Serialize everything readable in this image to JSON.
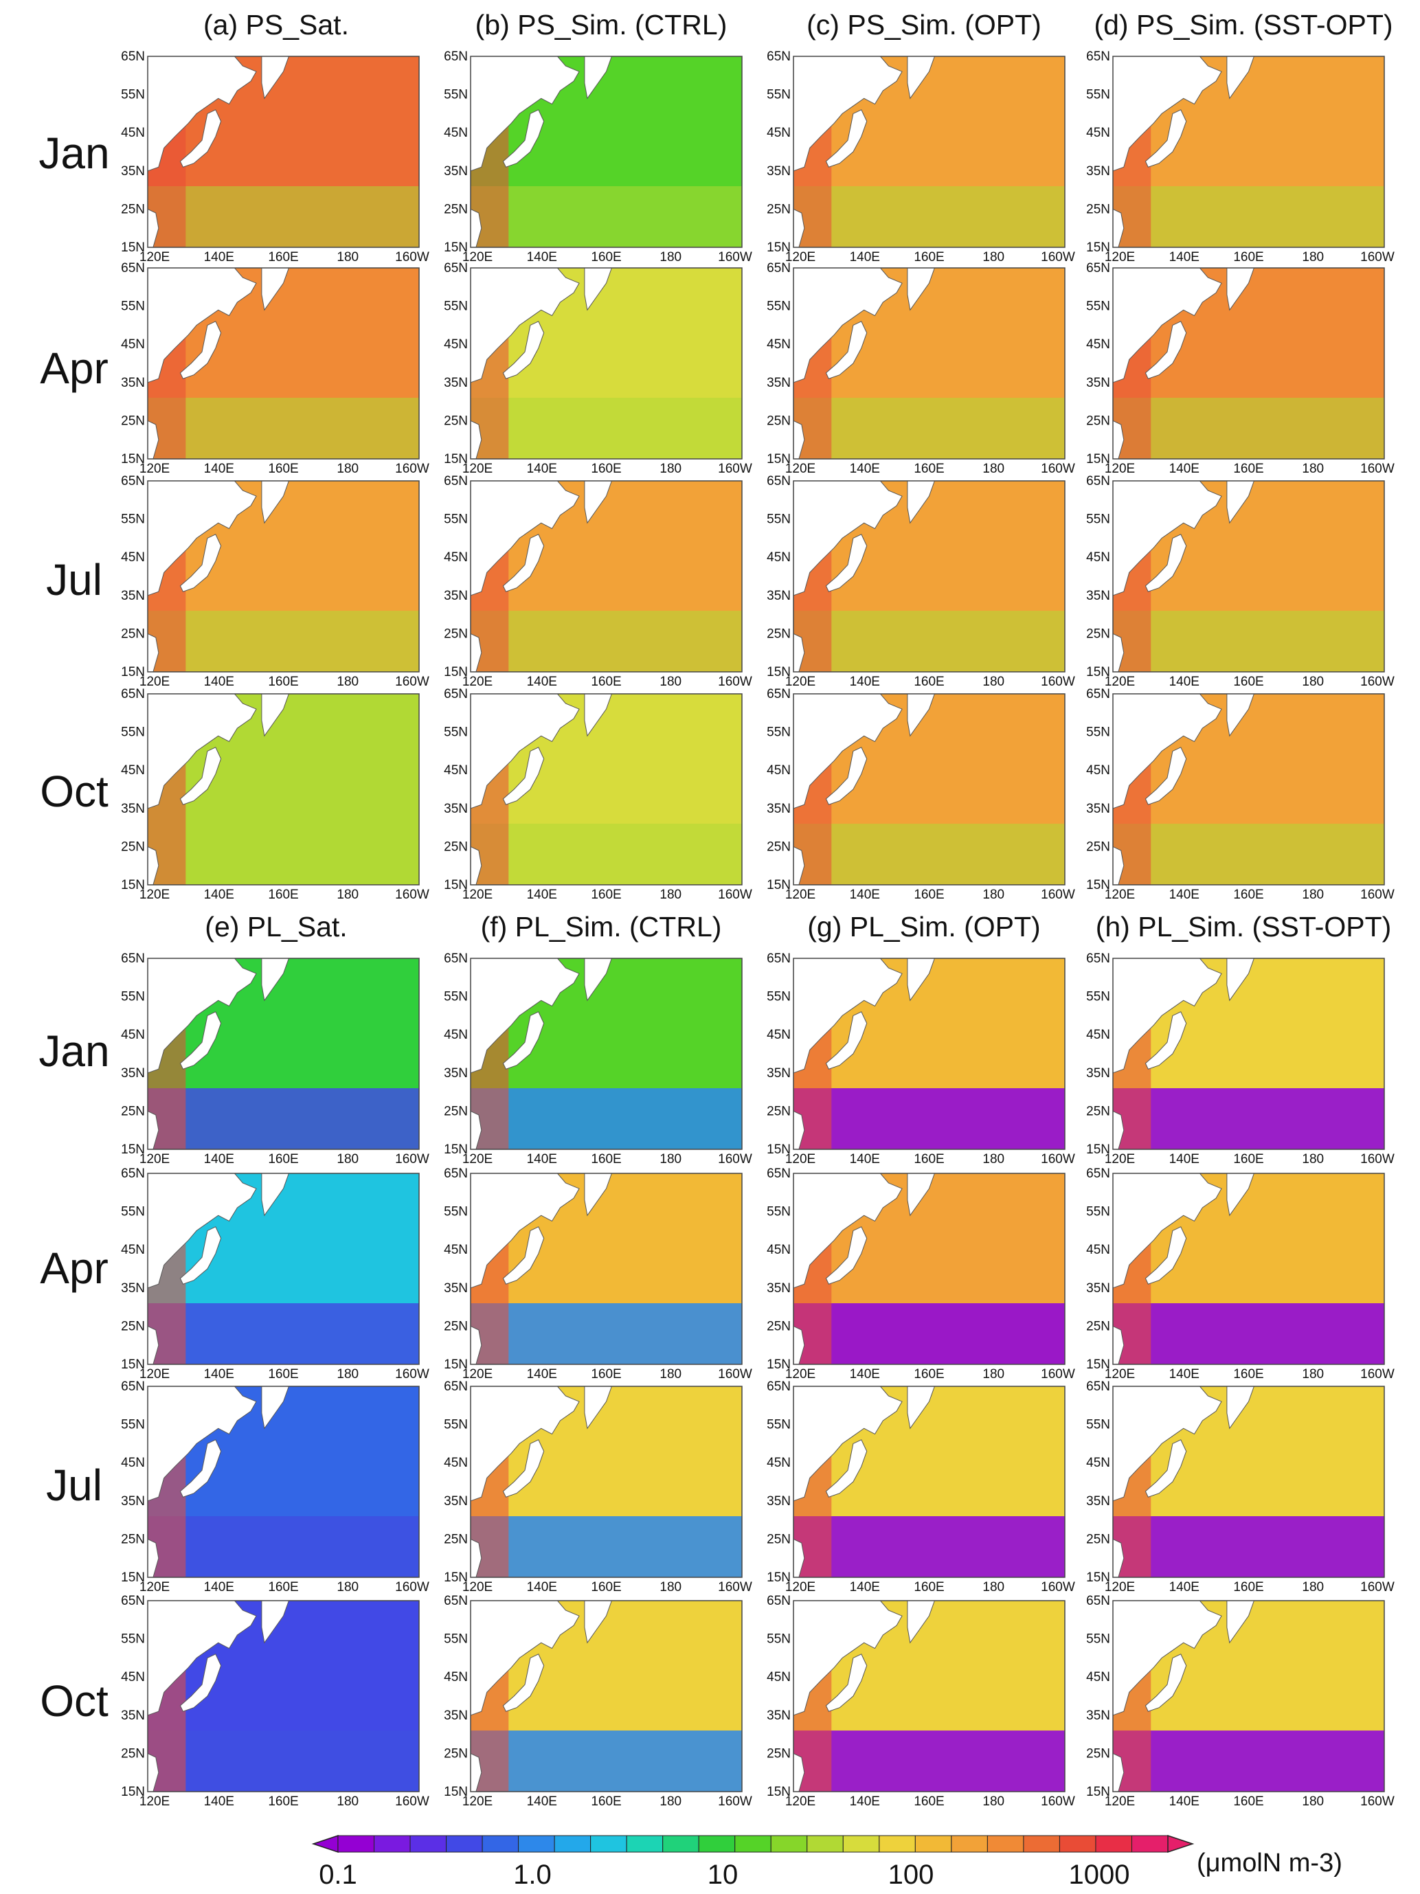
{
  "figure": {
    "column_titles_top": [
      "(a) PS_Sat.",
      "(b) PS_Sim. (CTRL)",
      "(c) PS_Sim. (OPT)",
      "(d) PS_Sim. (SST-OPT)"
    ],
    "column_titles_bottom": [
      "(e) PL_Sat.",
      "(f) PL_Sim. (CTRL)",
      "(g) PL_Sim. (OPT)",
      "(h) PL_Sim. (SST-OPT)"
    ],
    "row_labels": [
      "Jan",
      "Apr",
      "Jul",
      "Oct"
    ],
    "lat_ticks": [
      "65N",
      "55N",
      "45N",
      "35N",
      "25N",
      "15N"
    ],
    "lon_ticks": [
      "120E",
      "140E",
      "160E",
      "180",
      "160W"
    ]
  },
  "colorbar": {
    "labels": [
      "0.1",
      "1.0",
      "10",
      "100",
      "1000"
    ],
    "unit": "(μmolN m-3)",
    "colors": [
      "#9400d3",
      "#7a1ae0",
      "#5b2fe6",
      "#4149e6",
      "#3366e6",
      "#2d88ea",
      "#23a8ea",
      "#1fc4e0",
      "#1cd4b4",
      "#20d27a",
      "#30cf3c",
      "#55d328",
      "#86d62a",
      "#b1d934",
      "#d7dc3c",
      "#eed23c",
      "#f2b936",
      "#f2a238",
      "#f08a36",
      "#ec6c34",
      "#e94c36",
      "#e82e46",
      "#e51f6a"
    ]
  },
  "panel_colors": {
    "PS_Sat": [
      "#ec6c34",
      "#f08a36",
      "#f2a238",
      "#b1d934"
    ],
    "PS_CTRL": [
      "#55d328",
      "#d7dc3c",
      "#f2a238",
      "#d7dc3c"
    ],
    "PS_OPT": [
      "#f2a238",
      "#f2a238",
      "#f2a238",
      "#f2a238"
    ],
    "PS_SST": [
      "#f2a238",
      "#f08a36",
      "#f2a238",
      "#f2a238"
    ],
    "PL_Sat": [
      "#30cf3c",
      "#1fc4e0",
      "#3366e6",
      "#4149e6"
    ],
    "PL_CTRL": [
      "#55d328",
      "#f2b936",
      "#eed23c",
      "#eed23c"
    ],
    "PL_OPT": [
      "#f2b936",
      "#f2a238",
      "#eed23c",
      "#eed23c"
    ],
    "PL_SST": [
      "#eed23c",
      "#f2b936",
      "#eed23c",
      "#eed23c"
    ]
  }
}
